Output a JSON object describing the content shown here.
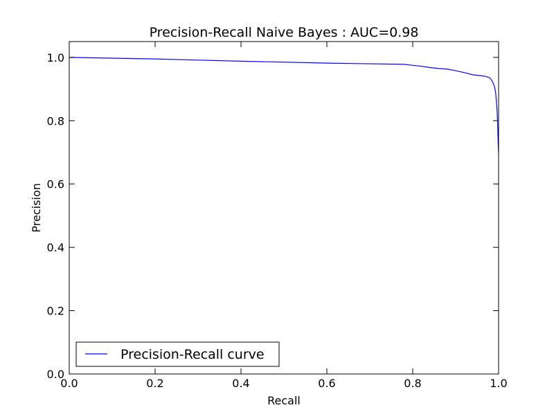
{
  "chart_data": {
    "type": "line",
    "title": "Precision-Recall Naive Bayes : AUC=0.98",
    "xlabel": "Recall",
    "ylabel": "Precision",
    "xlim": [
      0.0,
      1.0
    ],
    "ylim": [
      0.0,
      1.05
    ],
    "xticks": [
      0.0,
      0.2,
      0.4,
      0.6,
      0.8,
      1.0
    ],
    "xtick_labels": [
      "0.0",
      "0.2",
      "0.4",
      "0.6",
      "0.8",
      "1.0"
    ],
    "yticks": [
      0.0,
      0.2,
      0.4,
      0.6,
      0.8,
      1.0
    ],
    "ytick_labels": [
      "0.0",
      "0.2",
      "0.4",
      "0.6",
      "0.8",
      "1.0"
    ],
    "grid": false,
    "legend": {
      "position": "lower-left",
      "entries": [
        "Precision-Recall curve"
      ]
    },
    "series": [
      {
        "name": "Precision-Recall curve",
        "color": "#0000ff",
        "x": [
          0.0,
          0.2,
          0.4,
          0.6,
          0.78,
          0.8,
          0.82,
          0.84,
          0.86,
          0.88,
          0.9,
          0.92,
          0.94,
          0.96,
          0.97,
          0.98,
          0.985,
          0.99,
          0.993,
          0.995,
          0.997,
          0.998,
          0.999,
          1.0
        ],
        "y": [
          1.0,
          0.995,
          0.988,
          0.982,
          0.978,
          0.975,
          0.972,
          0.968,
          0.965,
          0.963,
          0.958,
          0.952,
          0.945,
          0.942,
          0.94,
          0.935,
          0.925,
          0.91,
          0.89,
          0.86,
          0.82,
          0.78,
          0.73,
          0.697
        ]
      }
    ]
  }
}
